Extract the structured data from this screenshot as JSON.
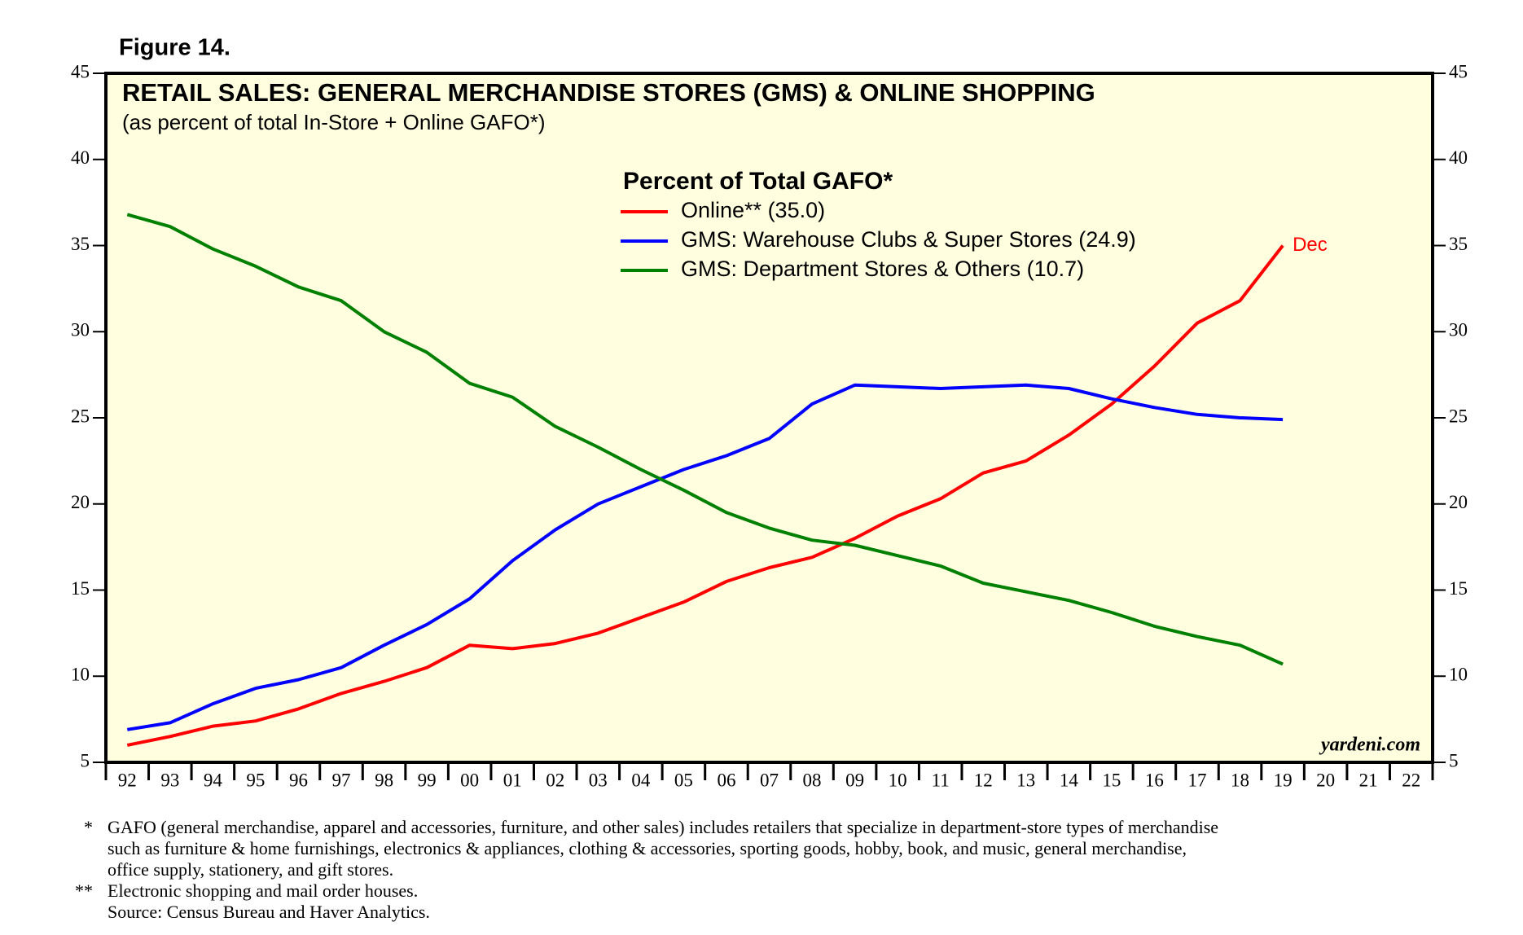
{
  "figure_label": "Figure 14.",
  "chart_data": {
    "type": "line",
    "title": "RETAIL SALES: GENERAL MERCHANDISE STORES (GMS) & ONLINE SHOPPING",
    "subtitle": "(as percent of total In-Store + Online GAFO*)",
    "legend_title": "Percent of Total GAFO*",
    "annotation": "Dec",
    "watermark": "yardeni.com",
    "categories": [
      "92",
      "93",
      "94",
      "95",
      "96",
      "97",
      "98",
      "99",
      "00",
      "01",
      "02",
      "03",
      "04",
      "05",
      "06",
      "07",
      "08",
      "09",
      "10",
      "11",
      "12",
      "13",
      "14",
      "15",
      "16",
      "17",
      "18",
      "19",
      "20",
      "21",
      "22"
    ],
    "series": [
      {
        "name": "Online** (35.0)",
        "color": "#ff0000",
        "values": [
          6.0,
          6.5,
          7.1,
          7.4,
          8.1,
          9.0,
          9.7,
          10.5,
          11.8,
          11.6,
          11.9,
          12.5,
          13.4,
          14.3,
          15.5,
          16.3,
          16.9,
          18.0,
          19.3,
          20.3,
          21.8,
          22.5,
          24.0,
          25.8,
          28.0,
          30.5,
          31.8,
          35.0,
          null,
          null,
          null
        ]
      },
      {
        "name": "GMS: Warehouse Clubs & Super Stores (24.9)",
        "color": "#0000ff",
        "values": [
          6.9,
          7.3,
          8.4,
          9.3,
          9.8,
          10.5,
          11.8,
          13.0,
          14.5,
          16.7,
          18.5,
          20.0,
          21.0,
          22.0,
          22.8,
          23.8,
          25.8,
          26.9,
          26.8,
          26.7,
          26.8,
          26.9,
          26.7,
          26.1,
          25.6,
          25.2,
          25.0,
          24.9,
          null,
          null,
          null
        ]
      },
      {
        "name": "GMS: Department Stores & Others (10.7)",
        "color": "#008000",
        "values": [
          36.8,
          36.1,
          34.8,
          33.8,
          32.6,
          31.8,
          30.0,
          28.8,
          27.0,
          26.2,
          24.5,
          23.3,
          22.0,
          20.8,
          19.5,
          18.6,
          17.9,
          17.6,
          17.0,
          16.4,
          15.4,
          14.9,
          14.4,
          13.7,
          12.9,
          12.3,
          11.8,
          10.7,
          null,
          null,
          null
        ]
      }
    ],
    "ylim": [
      5,
      45
    ],
    "yticks": [
      5,
      10,
      15,
      20,
      25,
      30,
      35,
      40,
      45
    ],
    "grid": false
  },
  "footnotes": [
    {
      "mark": "*",
      "lines": [
        "GAFO (general merchandise, apparel and accessories, furniture, and other sales) includes retailers that specialize in department-store types of merchandise",
        "such as furniture & home furnishings, electronics & appliances, clothing & accessories, sporting goods, hobby, book, and music, general merchandise,",
        "office supply, stationery, and gift stores."
      ]
    },
    {
      "mark": "**",
      "lines": [
        "Electronic shopping and mail order houses.",
        "Source: Census Bureau and Haver Analytics."
      ]
    }
  ]
}
